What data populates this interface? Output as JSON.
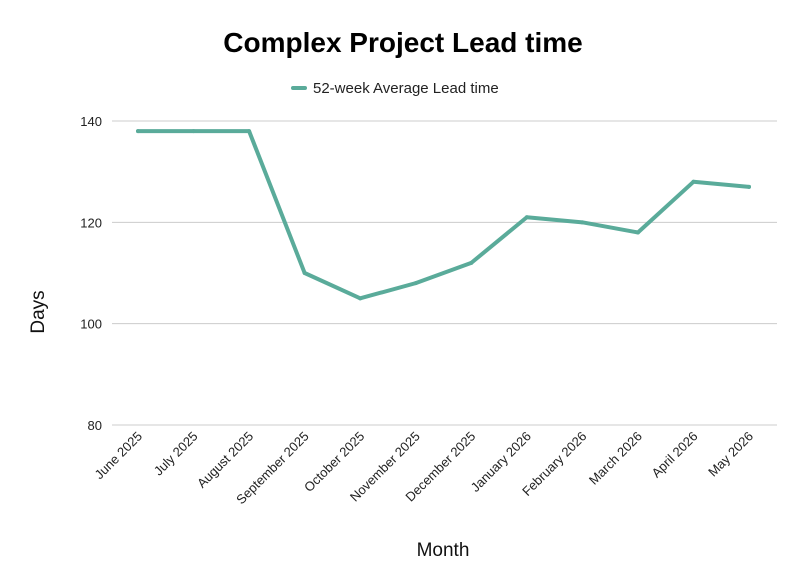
{
  "chart_data": {
    "type": "line",
    "title": "Complex Project Lead time",
    "xlabel": "Month",
    "ylabel": "Days",
    "categories": [
      "June 2025",
      "July 2025",
      "August 2025",
      "September 2025",
      "October 2025",
      "November 2025",
      "December 2025",
      "January 2026",
      "February 2026",
      "March 2026",
      "April 2026",
      "May 2026"
    ],
    "series": [
      {
        "name": "52-week Average Lead time",
        "color": "#5aab9a",
        "values": [
          138,
          138,
          138,
          110,
          105,
          108,
          112,
          121,
          120,
          118,
          128,
          127
        ]
      }
    ],
    "ylim": [
      80,
      140
    ],
    "yticks": [
      "80",
      "100",
      "120",
      "140"
    ],
    "grid": true,
    "legend_position": "top"
  }
}
